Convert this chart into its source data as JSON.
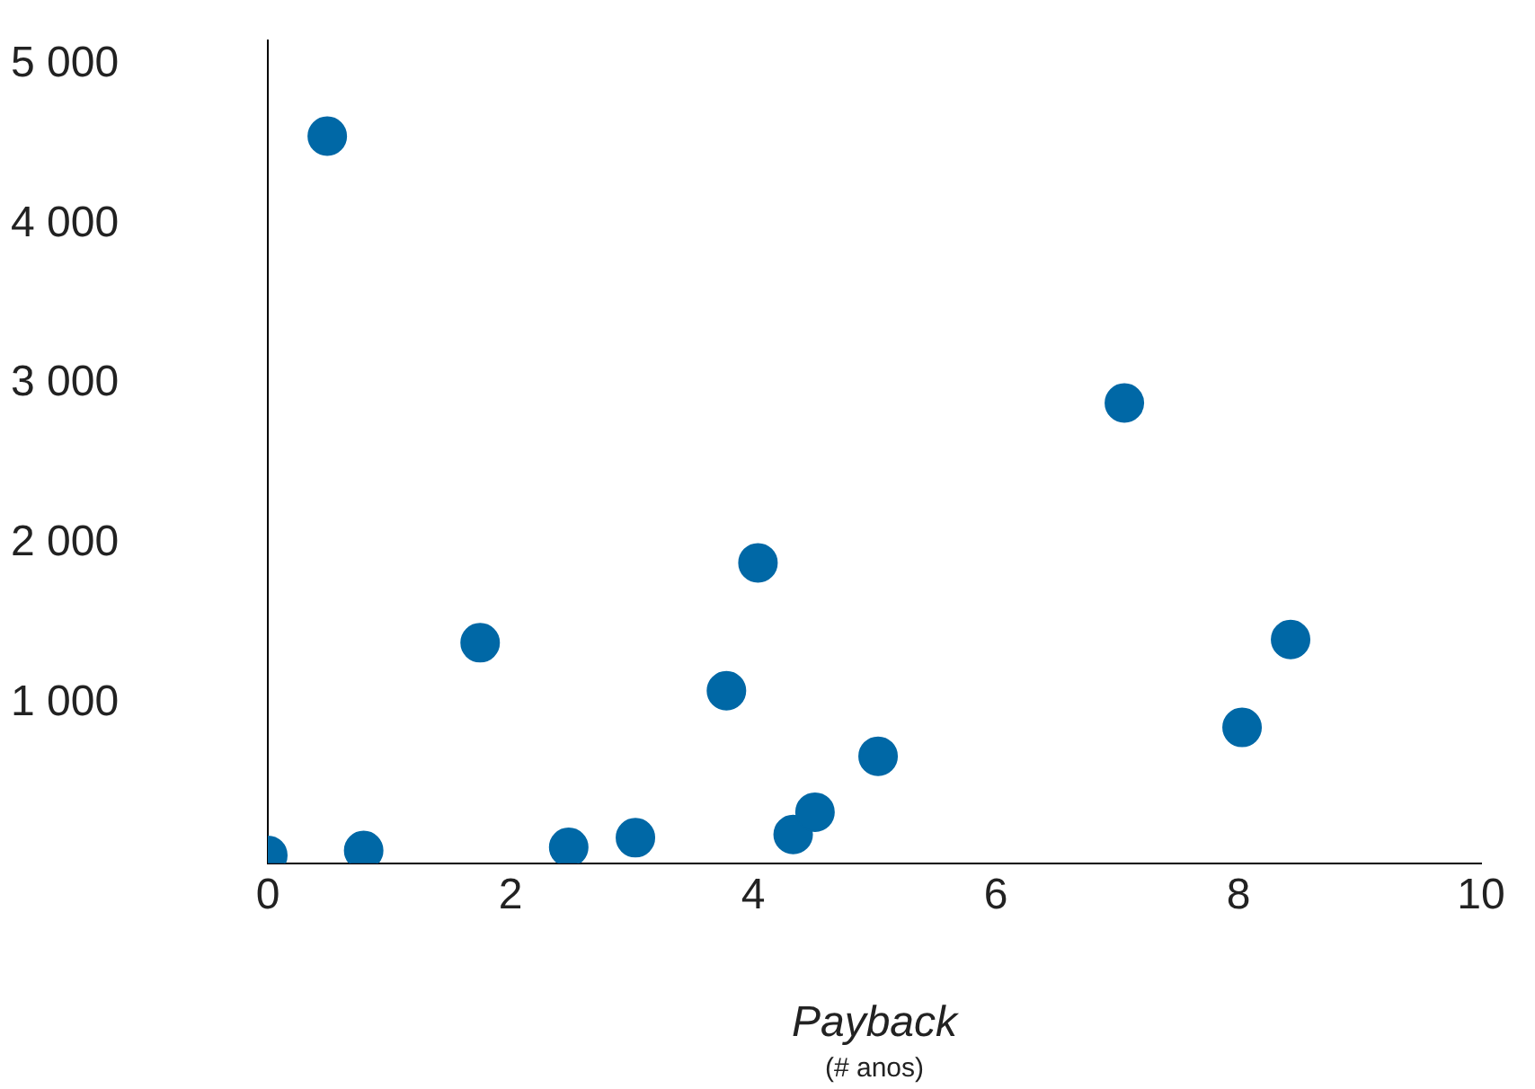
{
  "chart_data": {
    "type": "scatter",
    "xlabel": "Payback",
    "annotations": [
      "(# anos)"
    ],
    "x": [
      0,
      0.49,
      0.79,
      1.75,
      2.48,
      3.03,
      3.78,
      4.04,
      4.33,
      4.51,
      5.03,
      7.06,
      8.03,
      8.43
    ],
    "values": [
      50,
      4550,
      80,
      1380,
      100,
      160,
      1080,
      1880,
      180,
      320,
      670,
      2880,
      850,
      1400
    ],
    "color": "#0068a6",
    "marker": "circle",
    "grid": false,
    "legend": false,
    "xlim": [
      0,
      10
    ],
    "xticks": [
      0,
      2,
      4,
      6,
      8,
      10
    ],
    "ylim": [
      0,
      5150
    ],
    "yticks": [
      {
        "value": 1000,
        "label": "1 000"
      },
      {
        "value": 2000,
        "label": "2 000"
      },
      {
        "value": 3000,
        "label": "3 000"
      },
      {
        "value": 4000,
        "label": "4 000"
      },
      {
        "value": 5000,
        "label": "5 000"
      }
    ]
  }
}
